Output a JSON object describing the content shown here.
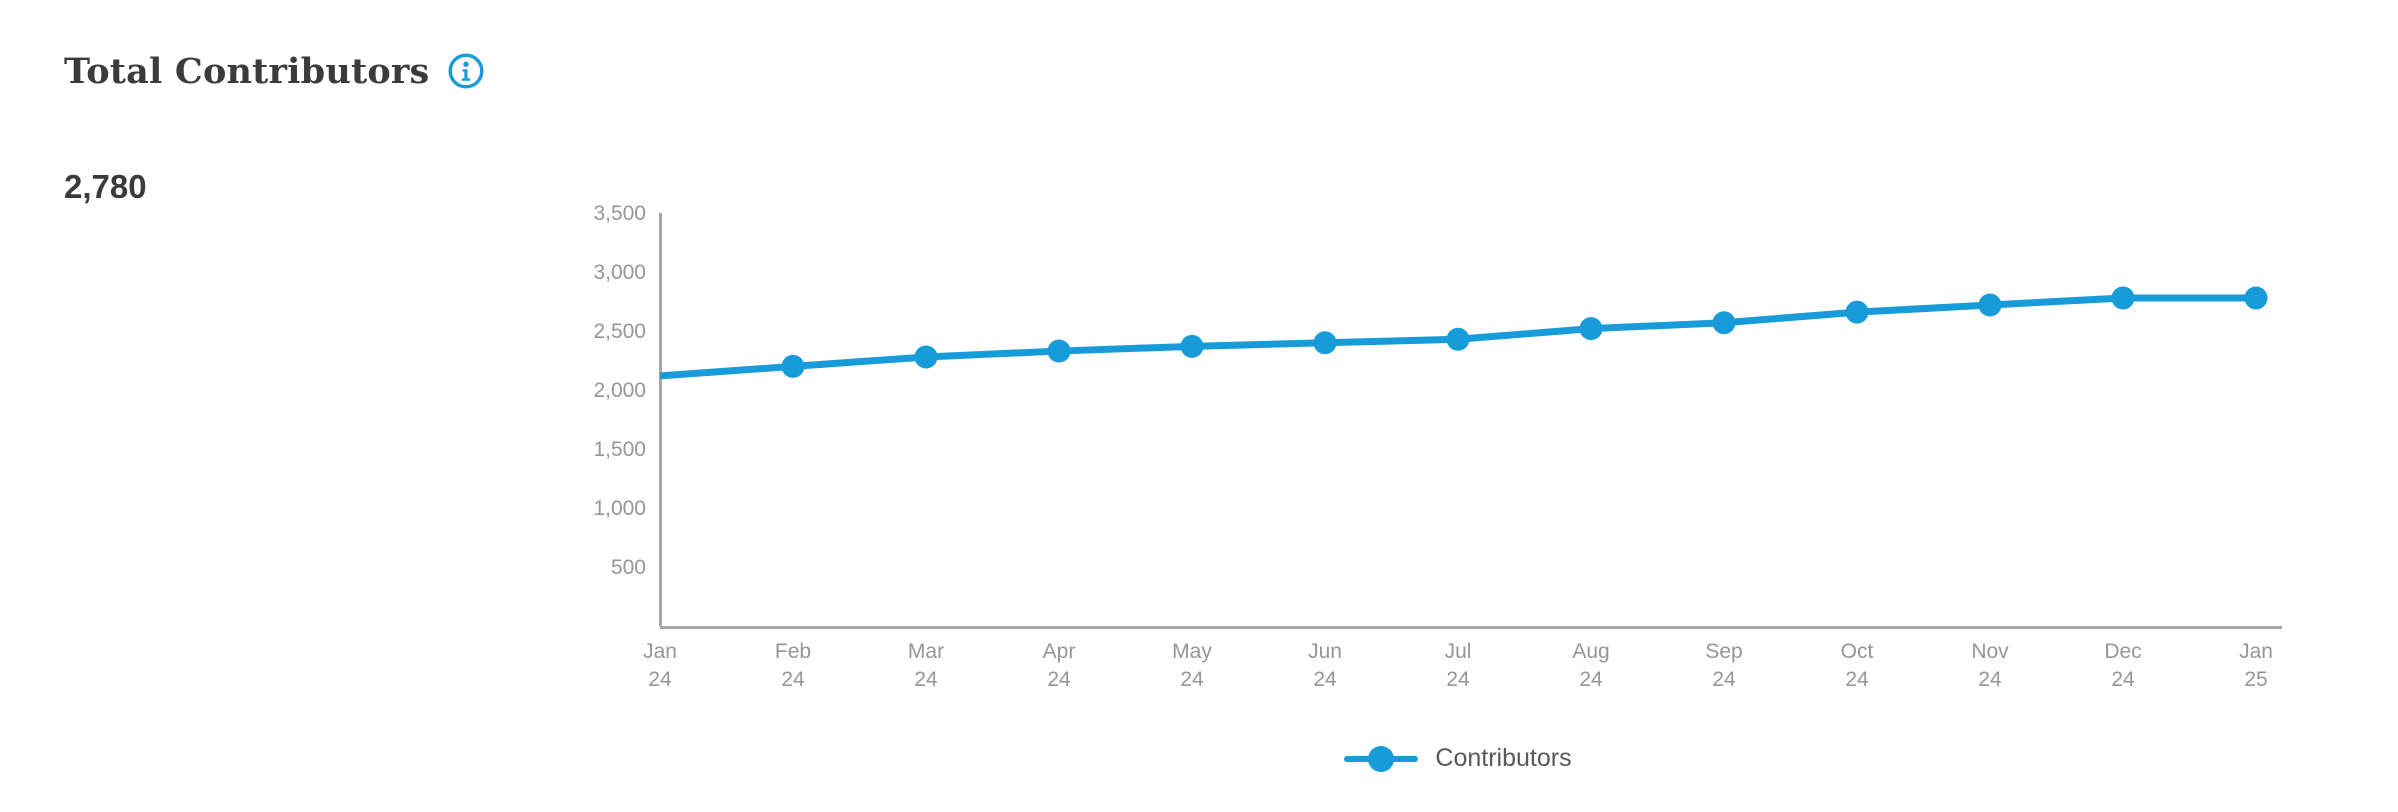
{
  "header": {
    "title": "Total Contributors",
    "metric_value": "2,780"
  },
  "colors": {
    "accent_blue": "#189bd9",
    "heading_text": "#3b3b3b",
    "axis_line": "#a6a6a6",
    "tick_label": "#969696",
    "legend_text": "#595959"
  },
  "chart_data": {
    "type": "line",
    "categories": [
      "Jan 24",
      "Feb 24",
      "Mar 24",
      "Apr 24",
      "May 24",
      "Jun 24",
      "Jul 24",
      "Aug 24",
      "Sep 24",
      "Oct 24",
      "Nov 24",
      "Dec 24",
      "Jan 25"
    ],
    "series": [
      {
        "name": "Contributors",
        "color": "#189bd9",
        "values": [
          2120,
          2200,
          2280,
          2330,
          2370,
          2400,
          2430,
          2520,
          2570,
          2660,
          2720,
          2780,
          2780
        ]
      }
    ],
    "ylim": [
      0,
      3500
    ],
    "yticks": [
      500,
      1000,
      1500,
      2000,
      2500,
      3000,
      3500
    ],
    "grid": false,
    "legend_position": "bottom",
    "first_point_has_marker": false
  }
}
